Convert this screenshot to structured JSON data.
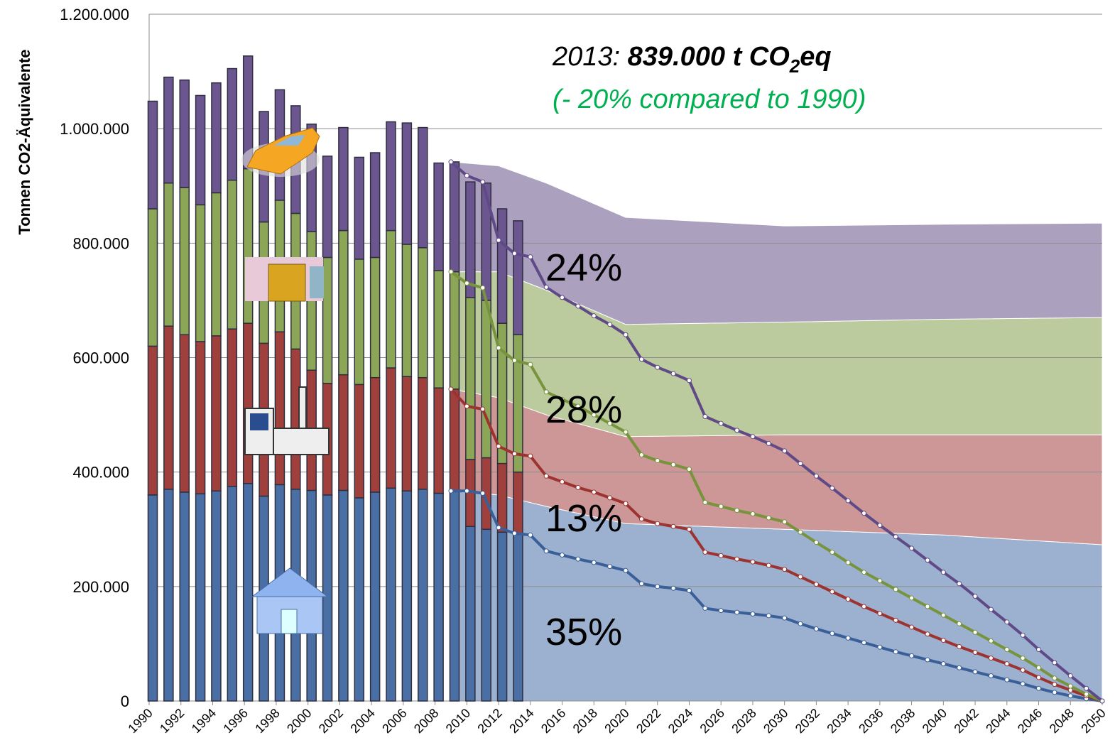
{
  "chart_data": [
    {
      "type": "area",
      "x": [
        2009,
        2012,
        2015,
        2020,
        2030,
        2040,
        2050
      ],
      "series": [
        {
          "color": "#9cb1cf",
          "values": [
            367000,
            360000,
            340000,
            310000,
            300000,
            290000,
            273000
          ]
        },
        {
          "color": "#cc9796",
          "values": [
            178000,
            170000,
            160000,
            152000,
            165000,
            175000,
            192000
          ]
        },
        {
          "color": "#bccb9d",
          "values": [
            205000,
            220000,
            218000,
            196000,
            197000,
            202000,
            205000
          ]
        },
        {
          "color": "#aba1bf",
          "values": [
            192000,
            185000,
            187000,
            187000,
            168000,
            166000,
            165000
          ]
        }
      ]
    },
    {
      "type": "bar",
      "ylabel": "Tonnen CO2-Äquivalente",
      "xlim": [
        1990,
        2050
      ],
      "ylim": [
        0,
        1200000
      ],
      "yticks": [
        0,
        {
          "value": 200000,
          "label": "200.000"
        },
        {
          "value": 400000,
          "label": "400.000"
        },
        {
          "value": 600000,
          "label": "600.000"
        },
        {
          "value": 800000,
          "label": "800.000"
        },
        {
          "value": 1000000,
          "label": "1.000.000"
        },
        {
          "value": 1200000,
          "label": "1.200.000"
        }
      ],
      "xticks": [
        1990,
        1992,
        1994,
        1996,
        1998,
        2000,
        2002,
        2004,
        2006,
        2008,
        2010,
        2012,
        2014,
        2016,
        2018,
        2020,
        2022,
        2024,
        2026,
        2028,
        2030,
        2032,
        2034,
        2036,
        2038,
        2040,
        2042,
        2044,
        2046,
        2048,
        2050
      ],
      "grid": true,
      "headline": {
        "year": "2013:",
        "value": "839.000 t CO",
        "sub": "2",
        "unit": "eq"
      },
      "subheadline": "(- 20% compared to 1990)",
      "shares": [
        "24%",
        "28%",
        "13%",
        "35%"
      ],
      "x": [
        1990,
        1991,
        1992,
        1993,
        1994,
        1995,
        1996,
        1997,
        1998,
        1999,
        2000,
        2001,
        2002,
        2003,
        2004,
        2005,
        2006,
        2007,
        2008,
        2009,
        2010,
        2011,
        2012,
        2013
      ],
      "series": [
        {
          "color": "#4a6fa5",
          "values": [
            360000,
            370000,
            365000,
            362000,
            367000,
            375000,
            380000,
            358000,
            378000,
            370000,
            368000,
            360000,
            368000,
            355000,
            365000,
            372000,
            367000,
            370000,
            363000,
            367000,
            305000,
            300000,
            295000,
            293000
          ]
        },
        {
          "color": "#a0403c",
          "values": [
            260000,
            285000,
            275000,
            266000,
            271000,
            275000,
            280000,
            267000,
            267000,
            245000,
            210000,
            195000,
            202000,
            198000,
            200000,
            210000,
            200000,
            195000,
            184000,
            178000,
            117000,
            125000,
            120000,
            107000
          ]
        },
        {
          "color": "#8aa656",
          "values": [
            240000,
            250000,
            257000,
            239000,
            250000,
            260000,
            270000,
            212000,
            230000,
            237000,
            242000,
            220000,
            252000,
            219000,
            210000,
            240000,
            231000,
            227000,
            205000,
            205000,
            283000,
            275000,
            245000,
            240000
          ]
        },
        {
          "color": "#6b568f",
          "values": [
            188000,
            185000,
            188000,
            191000,
            192000,
            195000,
            197000,
            193000,
            193000,
            188000,
            188000,
            177000,
            180000,
            178000,
            183000,
            190000,
            212000,
            210000,
            188000,
            192000,
            202000,
            205000,
            200000,
            199000
          ]
        }
      ]
    },
    {
      "type": "line",
      "x": [
        2009,
        2010,
        2011,
        2012,
        2013,
        2014,
        2015,
        2016,
        2017,
        2018,
        2019,
        2020,
        2021,
        2022,
        2023,
        2024,
        2025,
        2026,
        2027,
        2028,
        2029,
        2030,
        2031,
        2032,
        2033,
        2034,
        2035,
        2036,
        2037,
        2038,
        2039,
        2040,
        2041,
        2042,
        2043,
        2044,
        2045,
        2046,
        2047,
        2048,
        2049,
        2050
      ],
      "series": [
        {
          "color": "#3a5e97",
          "values": [
            367000,
            367000,
            363000,
            303000,
            293000,
            290000,
            262000,
            255000,
            248000,
            242000,
            235000,
            228000,
            205000,
            200000,
            197000,
            193000,
            162000,
            158000,
            155000,
            152000,
            149000,
            145000,
            135000,
            126000,
            118000,
            110000,
            102000,
            94000,
            86000,
            79000,
            72000,
            65000,
            58000,
            51000,
            44000,
            37000,
            30000,
            22000,
            15000,
            9000,
            4000,
            0
          ]
        },
        {
          "color": "#9c3330",
          "values": [
            178000,
            148000,
            147000,
            142000,
            139000,
            138000,
            131000,
            128000,
            125000,
            123000,
            120000,
            117000,
            113000,
            110000,
            108000,
            107000,
            98000,
            96000,
            93000,
            91000,
            88000,
            85000,
            82000,
            78000,
            73000,
            68000,
            63000,
            59000,
            55000,
            50000,
            45000,
            41000,
            37000,
            34000,
            31000,
            28000,
            24000,
            19000,
            14000,
            10000,
            5000,
            0
          ]
        },
        {
          "color": "#77933c",
          "values": [
            205000,
            215000,
            212000,
            172000,
            163000,
            160000,
            147000,
            144000,
            142000,
            135000,
            130000,
            125000,
            112000,
            110000,
            108000,
            105000,
            87000,
            86000,
            85000,
            84000,
            83000,
            83000,
            78000,
            73000,
            69000,
            64000,
            60000,
            57000,
            54000,
            51000,
            48000,
            44000,
            40000,
            35000,
            30000,
            25000,
            21000,
            17000,
            11000,
            7000,
            3000,
            0
          ]
        },
        {
          "color": "#5f4a87",
          "values": [
            192000,
            188000,
            185000,
            188000,
            187000,
            188000,
            183000,
            178000,
            175000,
            173000,
            173000,
            170000,
            167000,
            163000,
            159000,
            155000,
            150000,
            145000,
            140000,
            135000,
            130000,
            124000,
            120000,
            116000,
            112000,
            108000,
            103000,
            97000,
            92000,
            87000,
            81000,
            75000,
            70000,
            63000,
            55000,
            48000,
            40000,
            32000,
            27000,
            18000,
            10000,
            0
          ]
        }
      ]
    }
  ]
}
